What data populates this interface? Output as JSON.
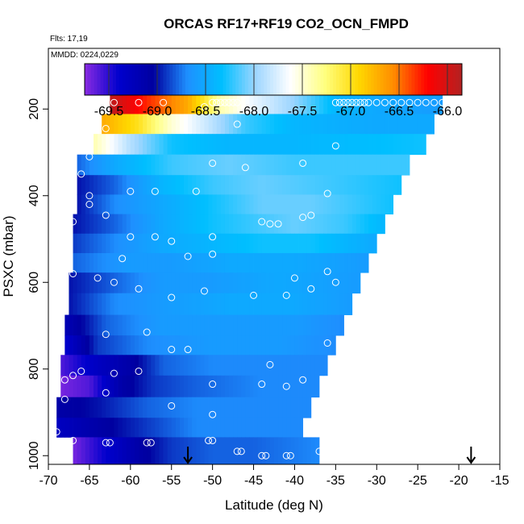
{
  "chart_data": {
    "type": "heatmap",
    "title": "ORCAS RF17+RF19 CO2_OCN_FMPD",
    "notes": {
      "flights": "Flts: 17,19",
      "dates": "MMDD: 0224,0229"
    },
    "xlabel": "Latitude (deg N)",
    "ylabel": "PSXC (mbar)",
    "xlim": [
      -70,
      -15
    ],
    "ylim": [
      1020,
      60
    ],
    "x_ticks": [
      -70,
      -65,
      -60,
      -55,
      -50,
      -45,
      -40,
      -35,
      -30,
      -25,
      -20,
      -15
    ],
    "y_ticks": [
      200,
      400,
      600,
      800,
      1000
    ],
    "colorbar": {
      "range": [
        -69.75,
        -65.85
      ],
      "ticks": [
        -69.5,
        -69.0,
        -68.5,
        -68.0,
        -67.5,
        -67.0,
        -66.5,
        -66.0
      ],
      "tick_labels": [
        "-69.5",
        "-69.0",
        "-68.5",
        "-68.0",
        "-67.5",
        "-67.0",
        "-66.5",
        "-66.0"
      ],
      "stops": [
        "#8a2be2",
        "#0000cd",
        "#0000a0",
        "#1e90ff",
        "#00bfff",
        "#9fd6ff",
        "#ffffff",
        "#ffff80",
        "#ffd700",
        "#ff8c00",
        "#ff0000",
        "#b22222"
      ]
    },
    "layers": [
      {
        "p": 188,
        "lat_start": -62.5,
        "lat_end": -22,
        "anchors": [
          [
            -62.5,
            -65.9
          ],
          [
            -58,
            -66.3
          ],
          [
            -53,
            -66.7
          ],
          [
            -49,
            -67.4
          ],
          [
            -45,
            -67.7
          ],
          [
            -40,
            -68.0
          ],
          [
            -35,
            -68.4
          ],
          [
            -30,
            -68.5
          ],
          [
            -22,
            -68.6
          ]
        ]
      },
      {
        "p": 235,
        "lat_start": -63.5,
        "lat_end": -23,
        "anchors": [
          [
            -63.5,
            -66.7
          ],
          [
            -59,
            -67.0
          ],
          [
            -55,
            -67.5
          ],
          [
            -51,
            -67.8
          ],
          [
            -46,
            -68.2
          ],
          [
            -40,
            -68.4
          ],
          [
            -30,
            -68.5
          ],
          [
            -23,
            -68.5
          ]
        ]
      },
      {
        "p": 280,
        "lat_start": -64.5,
        "lat_end": -24,
        "anchors": [
          [
            -64.5,
            -67.4
          ],
          [
            -60,
            -67.9
          ],
          [
            -55,
            -68.3
          ],
          [
            -48,
            -68.4
          ],
          [
            -40,
            -68.4
          ],
          [
            -24,
            -68.3
          ]
        ]
      },
      {
        "p": 330,
        "lat_start": -66.5,
        "lat_end": -26,
        "anchors": [
          [
            -66.5,
            -68.8
          ],
          [
            -62,
            -68.5
          ],
          [
            -55,
            -68.2
          ],
          [
            -48,
            -68.1
          ],
          [
            -40,
            -68.2
          ],
          [
            -26,
            -68.2
          ]
        ]
      },
      {
        "p": 375,
        "lat_start": -66.5,
        "lat_end": -27,
        "anchors": [
          [
            -66.5,
            -69.0
          ],
          [
            -62,
            -68.8
          ],
          [
            -56,
            -68.4
          ],
          [
            -50,
            -68.2
          ],
          [
            -44,
            -68.1
          ],
          [
            -35,
            -68.2
          ],
          [
            -27,
            -68.3
          ]
        ]
      },
      {
        "p": 420,
        "lat_start": -66.5,
        "lat_end": -28,
        "anchors": [
          [
            -66.5,
            -69.0
          ],
          [
            -62,
            -68.7
          ],
          [
            -56,
            -68.5
          ],
          [
            -50,
            -68.3
          ],
          [
            -44,
            -68.1
          ],
          [
            -38,
            -68.1
          ],
          [
            -28,
            -68.3
          ]
        ]
      },
      {
        "p": 465,
        "lat_start": -67,
        "lat_end": -29,
        "anchors": [
          [
            -67,
            -69.0
          ],
          [
            -62,
            -68.8
          ],
          [
            -56,
            -68.5
          ],
          [
            -50,
            -68.3
          ],
          [
            -45,
            -68.2
          ],
          [
            -40,
            -68.1
          ],
          [
            -34,
            -68.2
          ],
          [
            -29,
            -68.4
          ]
        ]
      },
      {
        "p": 510,
        "lat_start": -67,
        "lat_end": -30,
        "anchors": [
          [
            -67,
            -68.9
          ],
          [
            -62,
            -68.7
          ],
          [
            -56,
            -68.5
          ],
          [
            -50,
            -68.4
          ],
          [
            -44,
            -68.3
          ],
          [
            -38,
            -68.3
          ],
          [
            -30,
            -68.5
          ]
        ]
      },
      {
        "p": 555,
        "lat_start": -67,
        "lat_end": -31,
        "anchors": [
          [
            -67,
            -68.8
          ],
          [
            -60,
            -68.6
          ],
          [
            -55,
            -68.6
          ],
          [
            -48,
            -68.5
          ],
          [
            -40,
            -68.5
          ],
          [
            -31,
            -68.6
          ]
        ]
      },
      {
        "p": 600,
        "lat_start": -67.5,
        "lat_end": -32,
        "anchors": [
          [
            -67.5,
            -69.0
          ],
          [
            -62,
            -68.8
          ],
          [
            -56,
            -68.6
          ],
          [
            -50,
            -68.6
          ],
          [
            -42,
            -68.5
          ],
          [
            -32,
            -68.6
          ]
        ]
      },
      {
        "p": 650,
        "lat_start": -67.5,
        "lat_end": -33,
        "anchors": [
          [
            -67.5,
            -69.0
          ],
          [
            -62,
            -68.7
          ],
          [
            -56,
            -68.6
          ],
          [
            -48,
            -68.5
          ],
          [
            -40,
            -68.5
          ],
          [
            -33,
            -68.6
          ]
        ]
      },
      {
        "p": 700,
        "lat_start": -68,
        "lat_end": -34,
        "anchors": [
          [
            -68,
            -69.2
          ],
          [
            -63,
            -68.8
          ],
          [
            -56,
            -68.6
          ],
          [
            -48,
            -68.6
          ],
          [
            -40,
            -68.6
          ],
          [
            -34,
            -68.7
          ]
        ]
      },
      {
        "p": 745,
        "lat_start": -68,
        "lat_end": -35,
        "anchors": [
          [
            -68,
            -69.4
          ],
          [
            -64,
            -68.9
          ],
          [
            -58,
            -68.7
          ],
          [
            -50,
            -68.6
          ],
          [
            -42,
            -68.6
          ],
          [
            -35,
            -68.7
          ]
        ]
      },
      {
        "p": 790,
        "lat_start": -68.5,
        "lat_end": -36,
        "anchors": [
          [
            -68.5,
            -69.6
          ],
          [
            -64,
            -69.3
          ],
          [
            -60,
            -69.1
          ],
          [
            -56,
            -68.8
          ],
          [
            -50,
            -68.7
          ],
          [
            -42,
            -68.7
          ],
          [
            -36,
            -68.7
          ]
        ]
      },
      {
        "p": 840,
        "lat_start": -68.5,
        "lat_end": -37,
        "anchors": [
          [
            -68.5,
            -69.7
          ],
          [
            -65,
            -69.6
          ],
          [
            -61,
            -69.1
          ],
          [
            -57,
            -68.9
          ],
          [
            -52,
            -68.8
          ],
          [
            -44,
            -68.7
          ],
          [
            -37,
            -68.7
          ]
        ]
      },
      {
        "p": 890,
        "lat_start": -69,
        "lat_end": -38,
        "anchors": [
          [
            -69,
            -69.1
          ],
          [
            -64,
            -69.0
          ],
          [
            -58,
            -68.8
          ],
          [
            -52,
            -68.7
          ],
          [
            -45,
            -68.7
          ],
          [
            -38,
            -68.7
          ]
        ]
      },
      {
        "p": 935,
        "lat_start": -69,
        "lat_end": -39,
        "anchors": [
          [
            -69,
            -69.3
          ],
          [
            -64,
            -69.1
          ],
          [
            -58,
            -68.9
          ],
          [
            -52,
            -68.7
          ],
          [
            -45,
            -68.7
          ],
          [
            -39,
            -68.7
          ]
        ]
      },
      {
        "p": 980,
        "lat_start": -67,
        "lat_end": -37,
        "anchors": [
          [
            -67,
            -69.7
          ],
          [
            -63,
            -69.4
          ],
          [
            -59,
            -69.1
          ],
          [
            -55,
            -68.9
          ],
          [
            -50,
            -68.8
          ],
          [
            -45,
            -68.8
          ],
          [
            -37,
            -68.7
          ]
        ]
      }
    ],
    "points": [
      [
        -62,
        185
      ],
      [
        -59,
        185
      ],
      [
        -56,
        185
      ],
      [
        -51,
        195
      ],
      [
        -50,
        185
      ],
      [
        -49.5,
        185
      ],
      [
        -49,
        185
      ],
      [
        -48.5,
        185
      ],
      [
        -48,
        185
      ],
      [
        -47.5,
        185
      ],
      [
        -47,
        185
      ],
      [
        -35,
        185
      ],
      [
        -34.5,
        185
      ],
      [
        -34,
        185
      ],
      [
        -33.5,
        185
      ],
      [
        -33,
        185
      ],
      [
        -32.5,
        185
      ],
      [
        -32,
        185
      ],
      [
        -31.5,
        185
      ],
      [
        -31,
        185
      ],
      [
        -30,
        185
      ],
      [
        -29,
        185
      ],
      [
        -28,
        185
      ],
      [
        -27,
        185
      ],
      [
        -26,
        185
      ],
      [
        -25,
        185
      ],
      [
        -24,
        185
      ],
      [
        -23,
        185
      ],
      [
        -22,
        185
      ],
      [
        -63,
        245
      ],
      [
        -47,
        235
      ],
      [
        -65,
        310
      ],
      [
        -50,
        325
      ],
      [
        -46,
        335
      ],
      [
        -39,
        325
      ],
      [
        -35,
        285
      ],
      [
        -66,
        350
      ],
      [
        -65,
        400
      ],
      [
        -60,
        390
      ],
      [
        -57,
        390
      ],
      [
        -52,
        390
      ],
      [
        -65,
        420
      ],
      [
        -36,
        395
      ],
      [
        -67,
        460
      ],
      [
        -63,
        445
      ],
      [
        -44,
        460
      ],
      [
        -43,
        465
      ],
      [
        -42,
        465
      ],
      [
        -39,
        450
      ],
      [
        -38,
        445
      ],
      [
        -60,
        495
      ],
      [
        -57,
        495
      ],
      [
        -55,
        505
      ],
      [
        -50,
        495
      ],
      [
        -61,
        545
      ],
      [
        -53,
        540
      ],
      [
        -50,
        535
      ],
      [
        -67,
        580
      ],
      [
        -64,
        590
      ],
      [
        -62,
        600
      ],
      [
        -40,
        590
      ],
      [
        -36,
        575
      ],
      [
        -59,
        615
      ],
      [
        -55,
        635
      ],
      [
        -51,
        620
      ],
      [
        -45,
        630
      ],
      [
        -41,
        630
      ],
      [
        -38,
        615
      ],
      [
        -35,
        600
      ],
      [
        -68,
        660
      ],
      [
        -63,
        720
      ],
      [
        -58,
        715
      ],
      [
        -55,
        755
      ],
      [
        -53,
        755
      ],
      [
        -36,
        740
      ],
      [
        -66,
        805
      ],
      [
        -67,
        815
      ],
      [
        -68,
        825
      ],
      [
        -62,
        810
      ],
      [
        -59,
        805
      ],
      [
        -43,
        790
      ],
      [
        -50,
        835
      ],
      [
        -44,
        835
      ],
      [
        -41,
        840
      ],
      [
        -39,
        825
      ],
      [
        -63,
        855
      ],
      [
        -55,
        885
      ],
      [
        -50,
        905
      ],
      [
        -68,
        870
      ],
      [
        -69,
        945
      ],
      [
        -67,
        965
      ],
      [
        -63,
        970
      ],
      [
        -62.5,
        970
      ],
      [
        -58,
        970
      ],
      [
        -57.5,
        970
      ],
      [
        -50.5,
        965
      ],
      [
        -50,
        965
      ],
      [
        -47,
        990
      ],
      [
        -46.5,
        990
      ],
      [
        -44,
        1000
      ],
      [
        -43.5,
        1000
      ],
      [
        -41,
        1000
      ],
      [
        -40.5,
        1000
      ],
      [
        -37,
        990
      ],
      [
        -36.5,
        980
      ]
    ],
    "arrows": [
      -53,
      -18.5
    ]
  }
}
